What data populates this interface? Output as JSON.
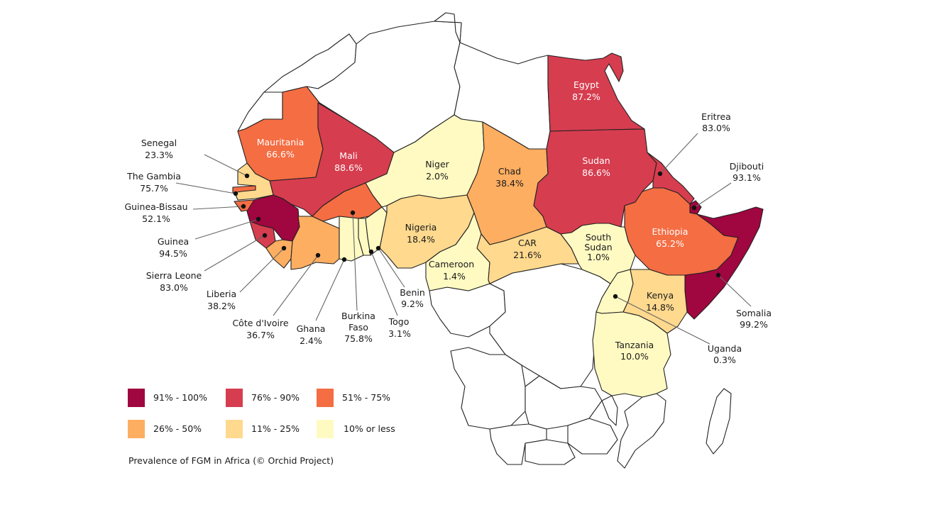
{
  "colors": {
    "c91_100": "#a0063f",
    "c76_90": "#d63d4f",
    "c51_75": "#f46d43",
    "c26_50": "#fdae61",
    "c11_25": "#fed98e",
    "c10_less": "#fffac2"
  },
  "countries": {
    "egypt": {
      "name": "Egypt",
      "value": "87.2%"
    },
    "sudan": {
      "name": "Sudan",
      "value": "86.6%"
    },
    "mali": {
      "name": "Mali",
      "value": "88.6%"
    },
    "mauritania": {
      "name": "Mauritania",
      "value": "66.6%"
    },
    "niger": {
      "name": "Niger",
      "value": "2.0%"
    },
    "chad": {
      "name": "Chad",
      "value": "38.4%"
    },
    "nigeria": {
      "name": "Nigeria",
      "value": "18.4%"
    },
    "car": {
      "name": "CAR",
      "value": "21.6%"
    },
    "cameroon": {
      "name": "Cameroon",
      "value": "1.4%"
    },
    "south_sudan": {
      "name1": "South",
      "name2": "Sudan",
      "value": "1.0%"
    },
    "ethiopia": {
      "name": "Ethiopia",
      "value": "65.2%"
    },
    "kenya": {
      "name": "Kenya",
      "value": "14.8%"
    },
    "tanzania": {
      "name": "Tanzania",
      "value": "10.0%"
    },
    "senegal": {
      "name": "Senegal",
      "value": "23.3%"
    },
    "gambia": {
      "name": "The Gambia",
      "value": "75.7%"
    },
    "guinea_bissau": {
      "name": "Guinea-Bissau",
      "value": "52.1%"
    },
    "guinea": {
      "name": "Guinea",
      "value": "94.5%"
    },
    "sierra_leone": {
      "name": "Sierra Leone",
      "value": "83.0%"
    },
    "liberia": {
      "name": "Liberia",
      "value": "38.2%"
    },
    "cote_divoire": {
      "name": "Côte d'Ivoire",
      "value": "36.7%"
    },
    "ghana": {
      "name": "Ghana",
      "value": "2.4%"
    },
    "burkina_faso": {
      "name1": "Burkina",
      "name2": "Faso",
      "value": "75.8%"
    },
    "togo": {
      "name": "Togo",
      "value": "3.1%"
    },
    "benin": {
      "name": "Benin",
      "value": "9.2%"
    },
    "eritrea": {
      "name": "Eritrea",
      "value": "83.0%"
    },
    "djibouti": {
      "name": "Djibouti",
      "value": "93.1%"
    },
    "somalia": {
      "name": "Somalia",
      "value": "99.2%"
    },
    "uganda": {
      "name": "Uganda",
      "value": "0.3%"
    }
  },
  "legend": [
    {
      "label": "91% - 100%",
      "color": "#a0063f"
    },
    {
      "label": "76% - 90%",
      "color": "#d63d4f"
    },
    {
      "label": "51% - 75%",
      "color": "#f46d43"
    },
    {
      "label": "26% - 50%",
      "color": "#fdae61"
    },
    {
      "label": "11% - 25%",
      "color": "#fed98e"
    },
    {
      "label": "10% or less",
      "color": "#fffac2"
    }
  ],
  "caption": "Prevalence of FGM in Africa (© Orchid Project)"
}
